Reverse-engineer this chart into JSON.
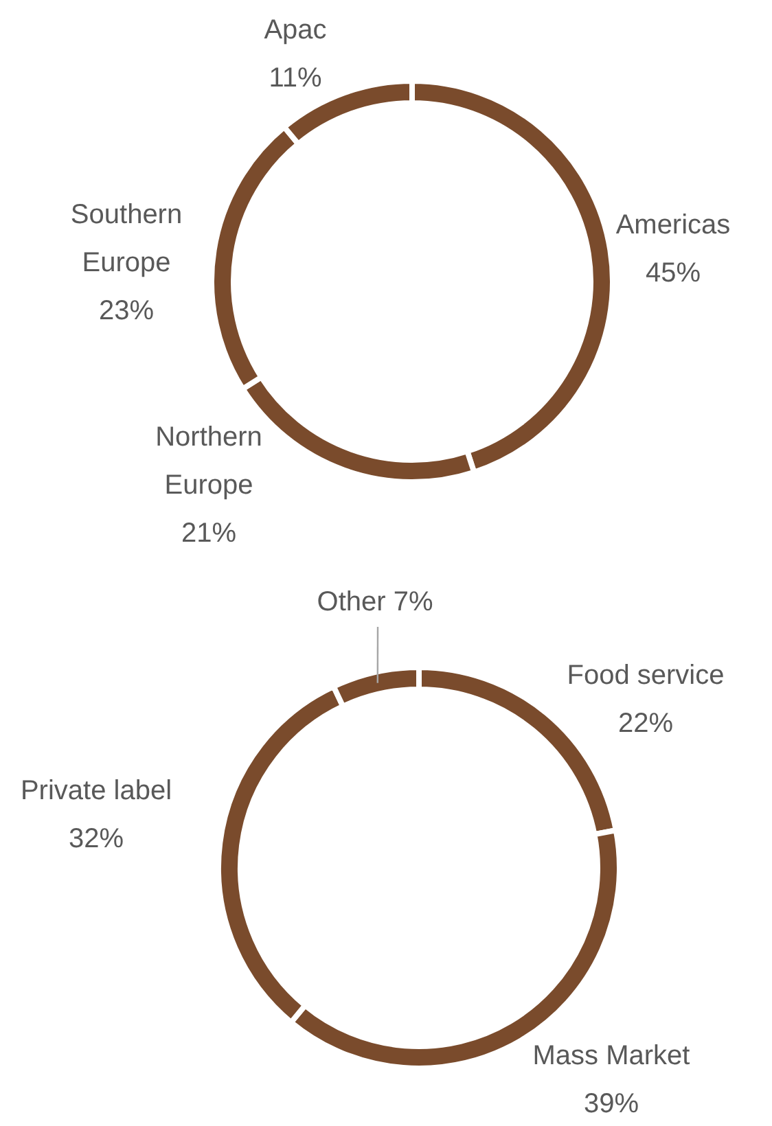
{
  "chart_data": [
    {
      "type": "donut",
      "categories": [
        "Americas",
        "Northern Europe",
        "Southern Europe",
        "Apac"
      ],
      "values": [
        45,
        21,
        23,
        11
      ],
      "colors": [
        "#7a4b2c",
        "#7a4b2c",
        "#7a4b2c",
        "#7a4b2c"
      ],
      "value_labels": [
        "45%",
        "21%",
        "23%",
        "11%"
      ],
      "legend": false
    },
    {
      "type": "donut",
      "categories": [
        "Food service",
        "Mass Market",
        "Private label",
        "Other"
      ],
      "values": [
        22,
        39,
        32,
        7
      ],
      "colors": [
        "#7a4b2c",
        "#7a4b2c",
        "#7a4b2c",
        "#7a4b2c"
      ],
      "value_labels": [
        "22%",
        "39%",
        "32%",
        "7%"
      ],
      "legend": false
    }
  ]
}
